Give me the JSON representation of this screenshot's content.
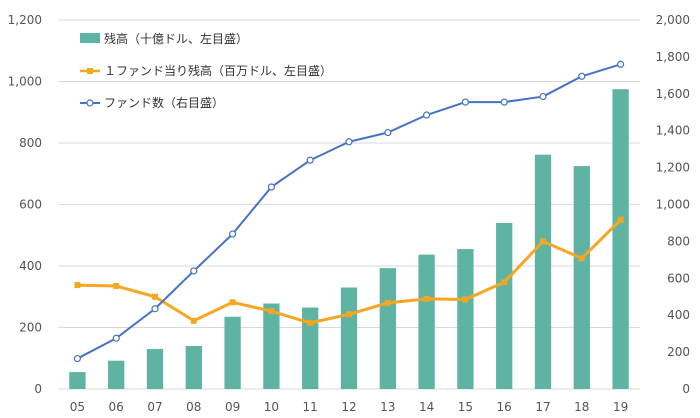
{
  "chart_data": {
    "type": "bar",
    "categories": [
      "05",
      "06",
      "07",
      "08",
      "09",
      "10",
      "11",
      "12",
      "13",
      "14",
      "15",
      "16",
      "17",
      "18",
      "19"
    ],
    "series": [
      {
        "name": "残高（十億ドル、左目盛）",
        "type": "bar",
        "axis": "left",
        "values": [
          55,
          92,
          130,
          140,
          235,
          278,
          265,
          330,
          393,
          437,
          455,
          540,
          762,
          725,
          975
        ]
      },
      {
        "name": "１ファンド当り残高（百万ドル、左目盛）",
        "type": "line",
        "axis": "left",
        "values": [
          338,
          335,
          300,
          222,
          282,
          253,
          215,
          243,
          280,
          293,
          291,
          347,
          480,
          425,
          550
        ]
      },
      {
        "name": "ファンド数（右目盛）",
        "type": "line",
        "axis": "right",
        "values": [
          165,
          275,
          435,
          640,
          840,
          1095,
          1240,
          1340,
          1390,
          1485,
          1555,
          1555,
          1585,
          1695,
          1760
        ]
      }
    ],
    "yleft": {
      "min": 0,
      "max": 1200,
      "ticks": [
        "0",
        "200",
        "400",
        "600",
        "800",
        "1,000",
        "1,200"
      ]
    },
    "yright": {
      "min": 0,
      "max": 2000,
      "ticks": [
        "0",
        "200",
        "400",
        "600",
        "800",
        "1,000",
        "1,200",
        "1,400",
        "1,600",
        "1,800",
        "2,000"
      ]
    },
    "grid": true,
    "legend_position": "top-left",
    "colors": {
      "bar": "#5fb3a3",
      "avg": "#f5a623",
      "count": "#4472c4",
      "grid": "#d9d9d9"
    }
  }
}
